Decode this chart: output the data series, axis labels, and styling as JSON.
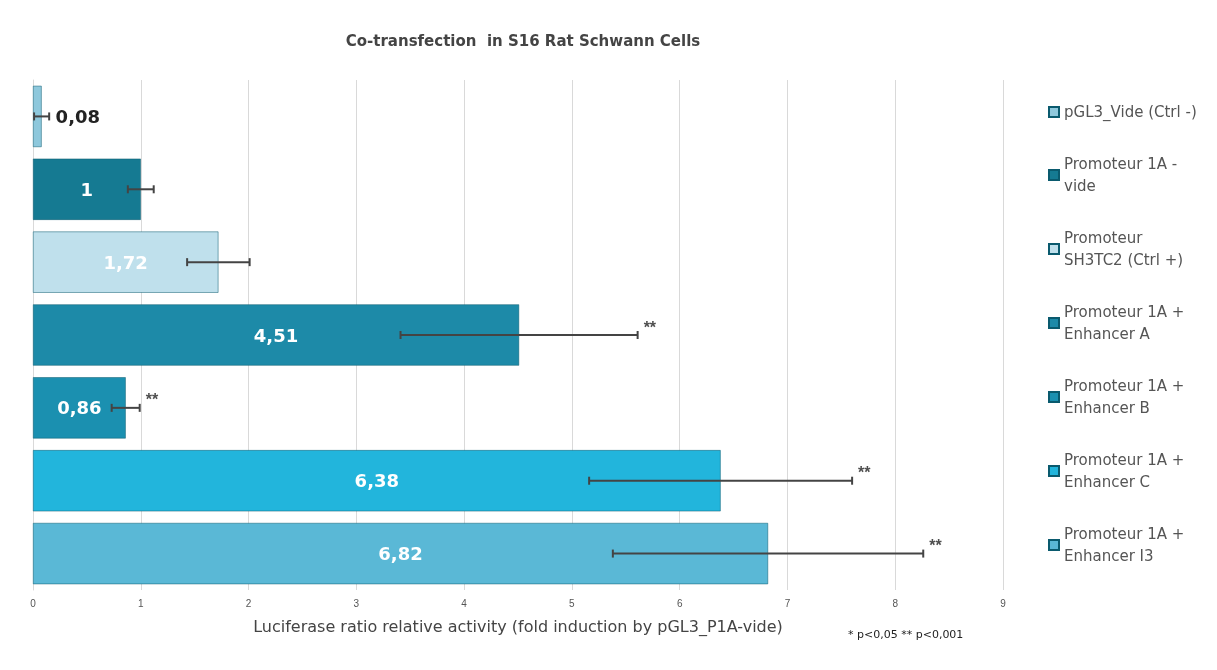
{
  "chart_data": {
    "type": "bar",
    "orientation": "horizontal",
    "title": "Co-transfection  in S16 Rat Schwann Cells",
    "xlabel": "Luciferase ratio relative activity (fold induction by pGL3_P1A-vide)",
    "categories": [
      null,
      null,
      null,
      null,
      null,
      null,
      null
    ],
    "series": [
      {
        "name": "pGL3_Vide (Ctrl -)",
        "color": "#8ec8dc",
        "values": [
          0.08,
          null,
          null,
          null,
          null,
          null,
          null
        ],
        "errors": [
          0.07,
          null,
          null,
          null,
          null,
          null,
          null
        ],
        "value_labels": [
          "0,08",
          null,
          null,
          null,
          null,
          null,
          null
        ]
      },
      {
        "name": "Promoteur 1A - vide",
        "color": "#157a92",
        "values": [
          null,
          1,
          null,
          null,
          null,
          null,
          null
        ],
        "errors": [
          null,
          0.12,
          null,
          null,
          null,
          null,
          null
        ],
        "value_labels": [
          null,
          "1",
          null,
          null,
          null,
          null,
          null
        ]
      },
      {
        "name": "Promoteur SH3TC2 (Ctrl +)",
        "color": "#bfe0ec",
        "values": [
          null,
          null,
          1.72,
          null,
          null,
          null,
          null
        ],
        "errors": [
          null,
          null,
          0.29,
          null,
          null,
          null,
          null
        ],
        "value_labels": [
          null,
          null,
          "1,72",
          null,
          null,
          null,
          null
        ]
      },
      {
        "name": "Promoteur 1A + Enhancer A",
        "color": "#1d8aa8",
        "values": [
          null,
          null,
          null,
          4.51,
          null,
          null,
          null
        ],
        "errors": [
          null,
          null,
          null,
          1.1,
          null,
          null,
          null
        ],
        "value_labels": [
          null,
          null,
          null,
          "4,51",
          null,
          null,
          null
        ]
      },
      {
        "name": "Promoteur 1A + Enhancer B",
        "color": "#1b90b0",
        "values": [
          null,
          null,
          null,
          null,
          0.86,
          null,
          null
        ],
        "errors": [
          null,
          null,
          null,
          null,
          0.13,
          null,
          null
        ],
        "value_labels": [
          null,
          null,
          null,
          null,
          "0,86",
          null,
          null
        ]
      },
      {
        "name": "Promoteur 1A + Enhancer C",
        "color": "#22b5dc",
        "values": [
          null,
          null,
          null,
          null,
          null,
          6.38,
          null
        ],
        "errors": [
          null,
          null,
          null,
          null,
          null,
          1.22,
          null
        ],
        "value_labels": [
          null,
          null,
          null,
          null,
          null,
          "6,38",
          null
        ]
      },
      {
        "name": "Promoteur 1A + Enhancer I3",
        "color": "#5ab8d6",
        "values": [
          null,
          null,
          null,
          null,
          null,
          null,
          6.82
        ],
        "errors": [
          null,
          null,
          null,
          null,
          null,
          null,
          1.44
        ],
        "value_labels": [
          null,
          null,
          null,
          null,
          null,
          null,
          "6,82"
        ]
      }
    ],
    "xlim": [
      0,
      9
    ],
    "xticks": [
      0,
      1,
      2,
      3,
      4,
      5,
      6,
      7,
      8,
      9
    ],
    "grid": "x",
    "legend": "right",
    "tick_labels": "x",
    "annotations": [
      {
        "text": "**",
        "x": 5.61
      },
      {
        "text": "**",
        "x": 0.99
      },
      {
        "text": "**",
        "x": 7.6
      },
      {
        "text": "**",
        "x": 8.26
      },
      "* p<0,05 ** p<0,001"
    ]
  }
}
